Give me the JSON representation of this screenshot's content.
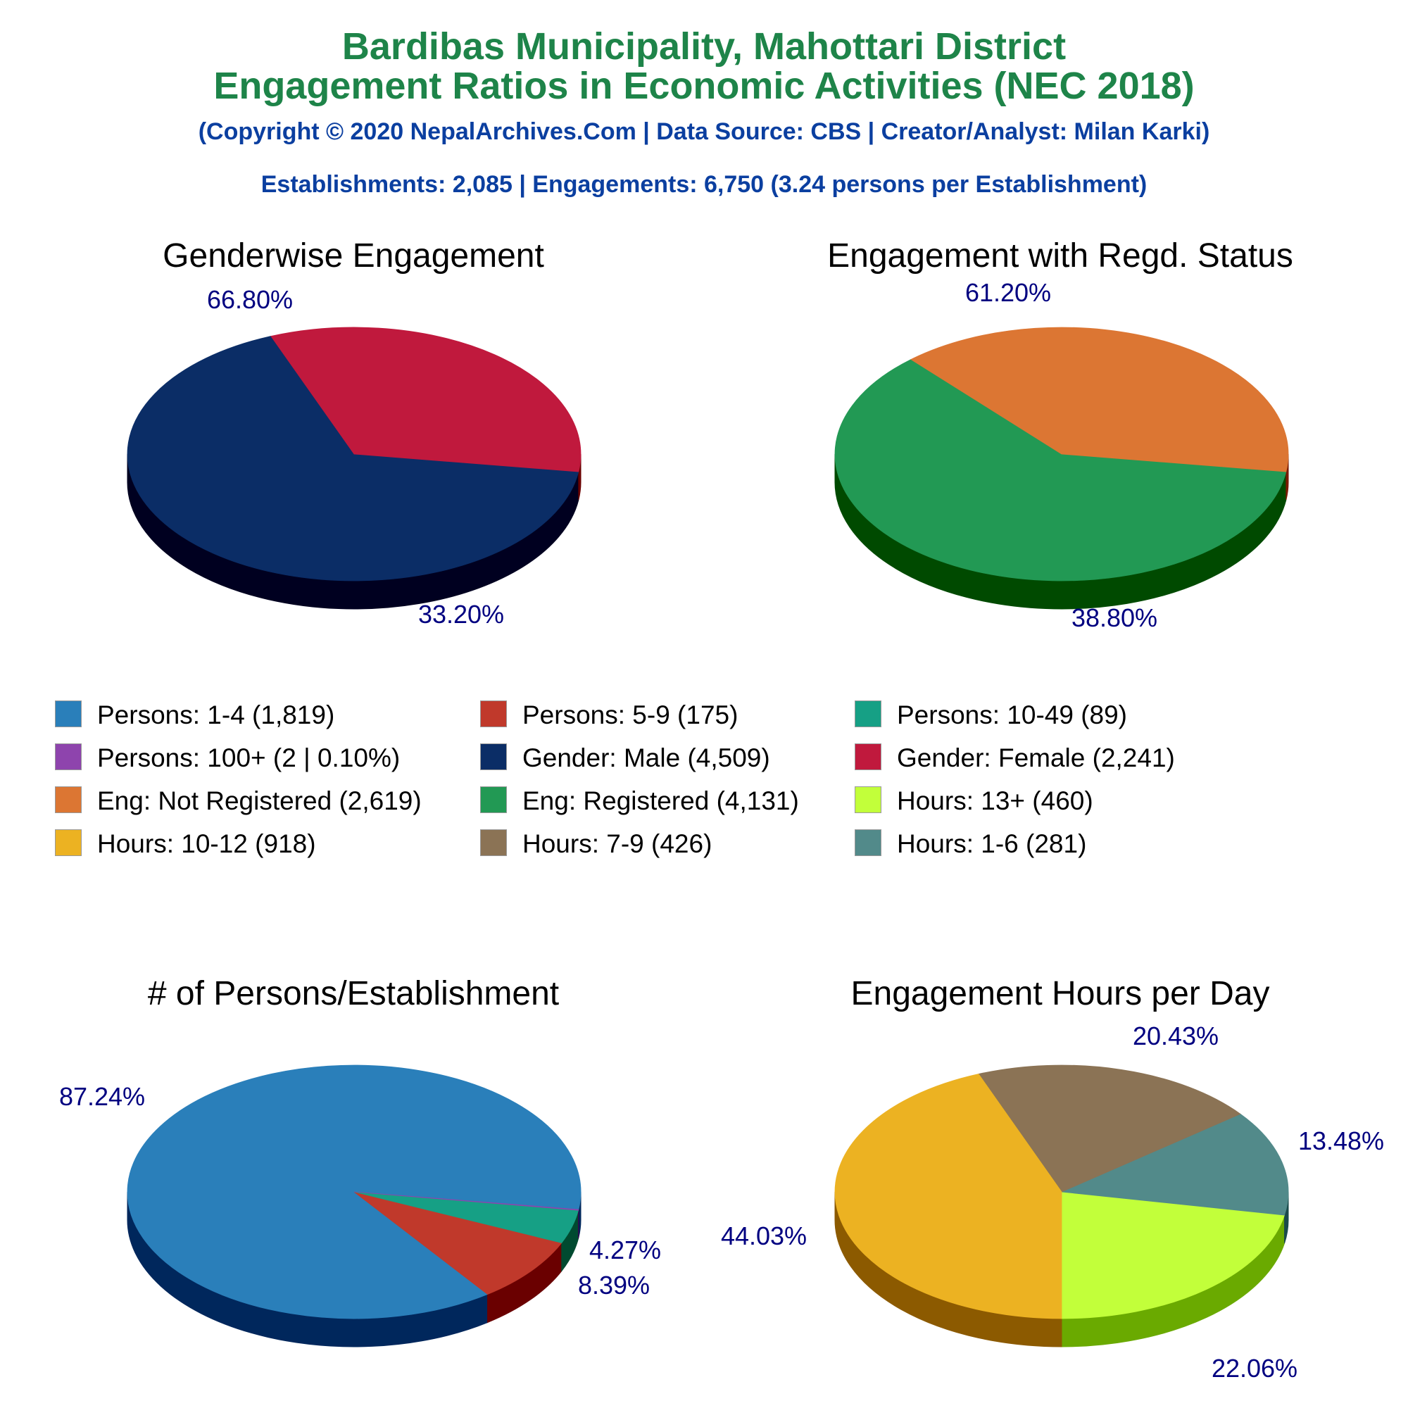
{
  "header": {
    "title_line1": "Bardibas Municipality, Mahottari District",
    "title_line2": "Engagement Ratios in Economic Activities (NEC 2018)",
    "subtitle": "(Copyright © 2020 NepalArchives.Com | Data Source: CBS | Creator/Analyst: Milan Karki)",
    "summary": "Establishments: 2,085 | Engagements: 6,750 (3.24 persons per Establishment)"
  },
  "legend": [
    {
      "label": "Persons: 1-4 (1,819)",
      "color": "#2a7fba"
    },
    {
      "label": "Persons: 5-9 (175)",
      "color": "#c0392b"
    },
    {
      "label": "Persons: 10-49 (89)",
      "color": "#16a085"
    },
    {
      "label": "Persons: 100+ (2 | 0.10%)",
      "color": "#8e44ad"
    },
    {
      "label": "Gender: Male (4,509)",
      "color": "#0b2d66"
    },
    {
      "label": "Gender: Female (2,241)",
      "color": "#c0193d"
    },
    {
      "label": "Eng: Not Registered (2,619)",
      "color": "#dc7633"
    },
    {
      "label": "Eng: Registered (4,131)",
      "color": "#229954"
    },
    {
      "label": "Hours: 13+ (460)",
      "color": "#c2ff3a"
    },
    {
      "label": "Hours: 10-12 (918)",
      "color": "#ecb222"
    },
    {
      "label": "Hours: 7-9 (426)",
      "color": "#8b7355"
    },
    {
      "label": "Hours: 1-6 (281)",
      "color": "#528a8a"
    }
  ],
  "chart_data": [
    {
      "type": "pie",
      "title": "Genderwise Engagement",
      "slices": [
        {
          "label": "Gender: Male",
          "value": 66.8,
          "pct_label": "66.80%",
          "color": "#0b2d66",
          "side_color": "#000020"
        },
        {
          "label": "Gender: Female",
          "value": 33.2,
          "pct_label": "33.20%",
          "color": "#c0193d",
          "side_color": "#6a0000"
        }
      ]
    },
    {
      "type": "pie",
      "title": "Engagement with Regd. Status",
      "slices": [
        {
          "label": "Eng: Registered",
          "value": 61.2,
          "pct_label": "61.20%",
          "color": "#229954",
          "side_color": "#004a00"
        },
        {
          "label": "Eng: Not Registered",
          "value": 38.8,
          "pct_label": "38.80%",
          "color": "#dc7633",
          "side_color": "#7a1a00"
        }
      ]
    },
    {
      "type": "pie",
      "title": "# of Persons/Establishment",
      "slices": [
        {
          "label": "Persons: 1-4",
          "value": 87.24,
          "pct_label": "87.24%",
          "color": "#2a7fba",
          "side_color": "#00275c"
        },
        {
          "label": "Persons: 5-9",
          "value": 8.39,
          "pct_label": "8.39%",
          "color": "#c0392b",
          "side_color": "#6a0000"
        },
        {
          "label": "Persons: 10-49",
          "value": 4.27,
          "pct_label": "4.27%",
          "color": "#16a085",
          "side_color": "#004a30"
        },
        {
          "label": "Persons: 100+",
          "value": 0.1,
          "pct_label": "",
          "color": "#8e44ad",
          "side_color": "#3a0050"
        }
      ]
    },
    {
      "type": "pie",
      "title": "Engagement Hours per Day",
      "slices": [
        {
          "label": "Hours: 13+",
          "value": 22.06,
          "pct_label": "22.06%",
          "color": "#c2ff3a",
          "side_color": "#6aaa00"
        },
        {
          "label": "Hours: 1-6",
          "value": 13.48,
          "pct_label": "13.48%",
          "color": "#528a8a",
          "side_color": "#1a4a4a"
        },
        {
          "label": "Hours: 7-9",
          "value": 20.43,
          "pct_label": "20.43%",
          "color": "#8b7355",
          "side_color": "#4a3000"
        },
        {
          "label": "Hours: 10-12",
          "value": 44.03,
          "pct_label": "44.03%",
          "color": "#ecb222",
          "side_color": "#8c5a00"
        }
      ]
    }
  ]
}
